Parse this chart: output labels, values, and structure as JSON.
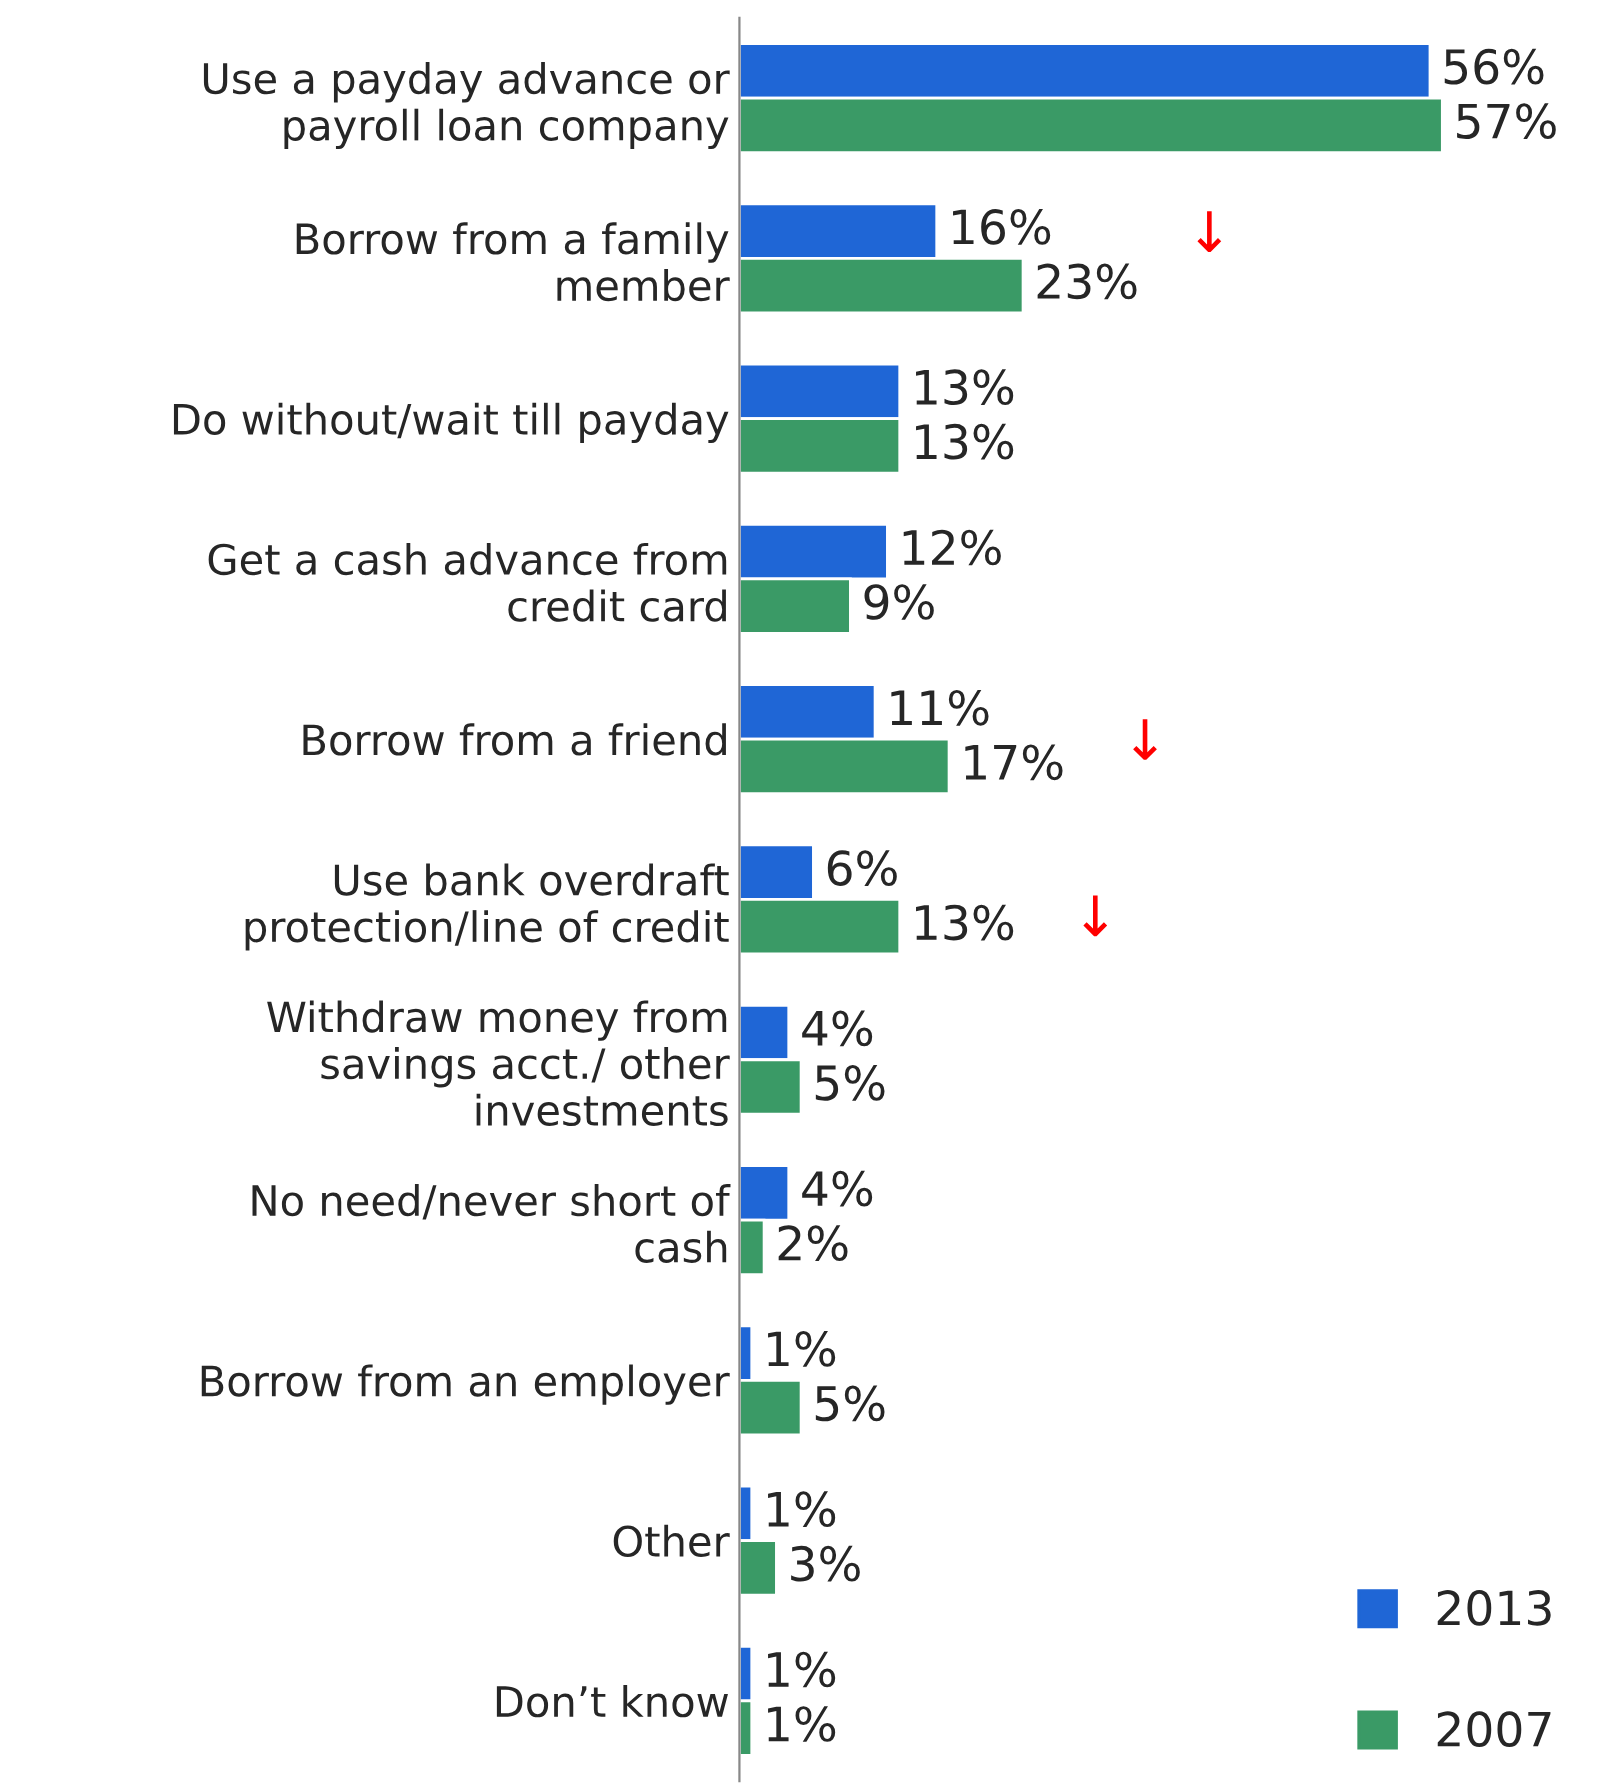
{
  "chart_data": {
    "type": "bar",
    "orientation": "horizontal",
    "categories": [
      "Use a payday advance or\npayroll loan company",
      "Borrow from a family\nmember",
      "Do without/wait till payday",
      "Get a cash advance from\ncredit card",
      "Borrow from a friend",
      "Use bank overdraft\nprotection/line of credit",
      "Withdraw money from\nsavings acct./ other\ninvestments",
      "No need/never short of\ncash",
      "Borrow from an employer",
      "Other",
      "Don’t know"
    ],
    "series": [
      {
        "name": "2013",
        "color": "#1f66d6",
        "values": [
          56,
          16,
          13,
          12,
          11,
          6,
          4,
          4,
          1,
          1,
          1
        ],
        "value_labels": [
          "56%",
          "16%",
          "13%",
          "12%",
          "11%",
          "6%",
          "4%",
          "4%",
          "1%",
          "1%",
          "1%"
        ]
      },
      {
        "name": "2007",
        "color": "#3a9a66",
        "values": [
          57,
          23,
          13,
          9,
          17,
          13,
          5,
          2,
          5,
          3,
          1
        ],
        "value_labels": [
          "57%",
          "23%",
          "13%",
          "9%",
          "17%",
          "13%",
          "5%",
          "2%",
          "5%",
          "3%",
          "1%"
        ]
      }
    ],
    "tick_labels": "y",
    "legend": "bottom right",
    "grid": false,
    "annotations": [
      "↓",
      "↓",
      "↓"
    ]
  }
}
